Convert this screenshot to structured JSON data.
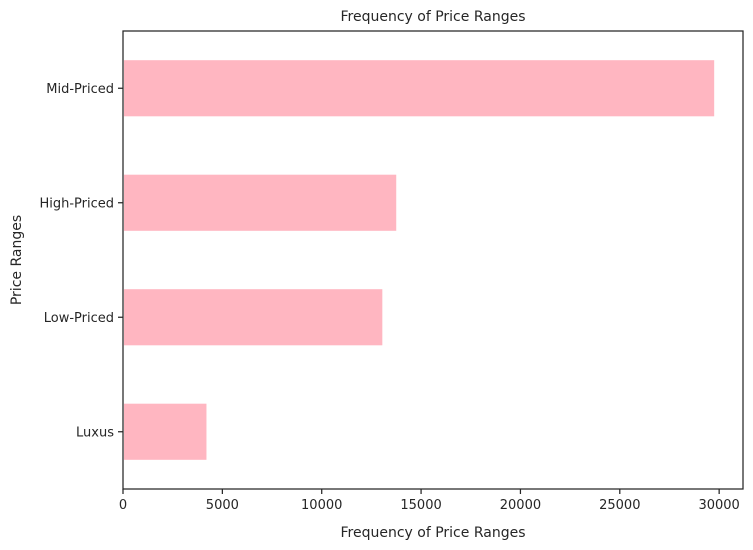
{
  "chart_data": {
    "type": "bar",
    "orientation": "horizontal",
    "title": "Frequency of Price Ranges",
    "xlabel": "Frequency of Price Ranges",
    "ylabel": "Price Ranges",
    "categories": [
      "Mid-Priced",
      "High-Priced",
      "Low-Priced",
      "Luxus"
    ],
    "values": [
      29750,
      13750,
      13050,
      4200
    ],
    "xlim": [
      0,
      31200
    ],
    "xticks": [
      0,
      5000,
      10000,
      15000,
      20000,
      25000,
      30000
    ],
    "bar_color": "#ffb6c1",
    "grid": false,
    "legend": "none"
  }
}
